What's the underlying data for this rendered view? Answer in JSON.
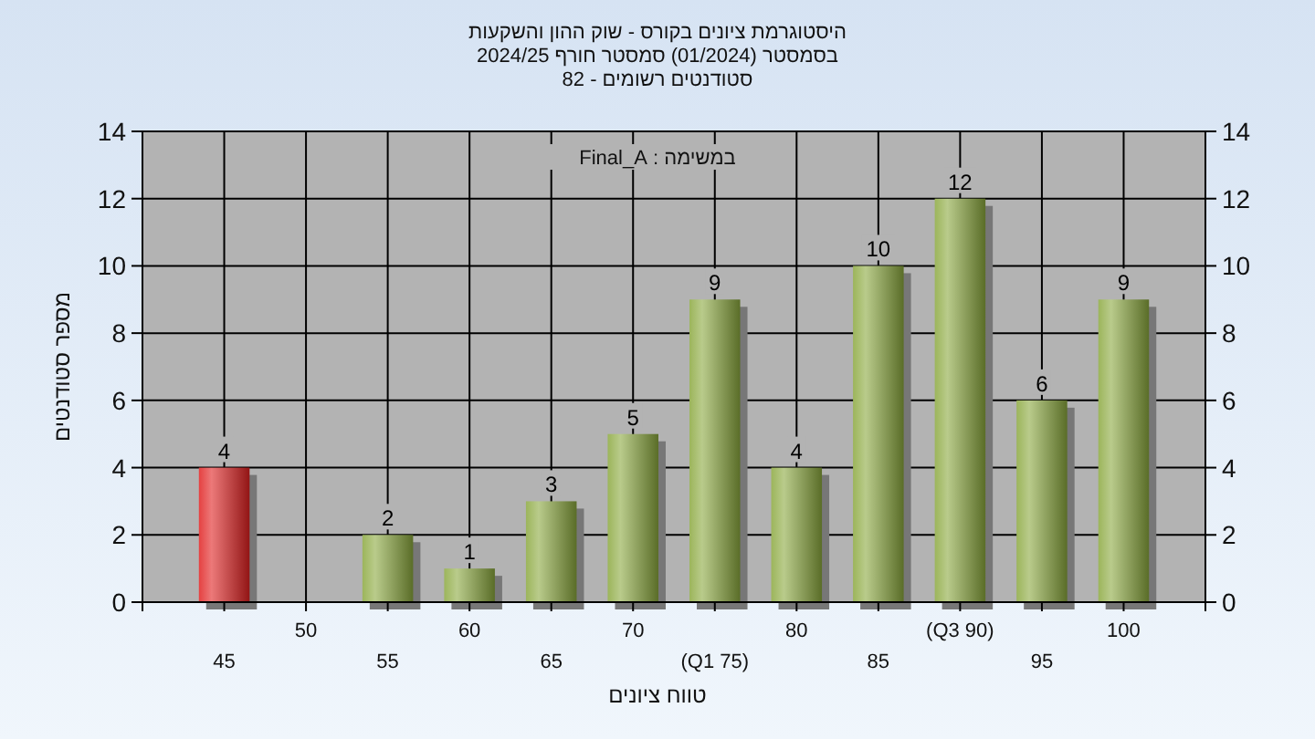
{
  "chart_data": {
    "type": "bar",
    "title": "היסטוגרמת ציונים בקורס - שוק ההון והשקעות",
    "subtitle": "בסמסטר  (01/2024)  סמסטר חורף 2024/25",
    "annotations": [
      "סטודנטים רשומים - 82",
      "במשימה : Final_A"
    ],
    "xlabel": "טווח ציונים",
    "ylabel": "מספר סטודנטים",
    "categories": [
      "45",
      "50",
      "55",
      "60",
      "65",
      "70",
      "(Q1 75)",
      "80",
      "85",
      "(Q3 90)",
      "95",
      "100"
    ],
    "series": [
      {
        "colors": [
          "#e02020",
          null,
          "#8aa83e",
          "#8aa83e",
          "#8aa83e",
          "#8aa83e",
          "#8aa83e",
          "#8aa83e",
          "#8aa83e",
          "#8aa83e",
          "#8aa83e",
          "#8aa83e"
        ],
        "values": [
          4,
          null,
          2,
          1,
          3,
          5,
          9,
          4,
          10,
          12,
          6,
          9
        ]
      }
    ],
    "data_labels": true,
    "ylim": [
      0,
      14
    ],
    "yticks": [
      0,
      2,
      4,
      6,
      8,
      10,
      12,
      14
    ],
    "y2lim": [
      0,
      14
    ],
    "y2ticks": [
      0,
      2,
      4,
      6,
      8,
      10,
      12,
      14
    ],
    "grid": true
  }
}
